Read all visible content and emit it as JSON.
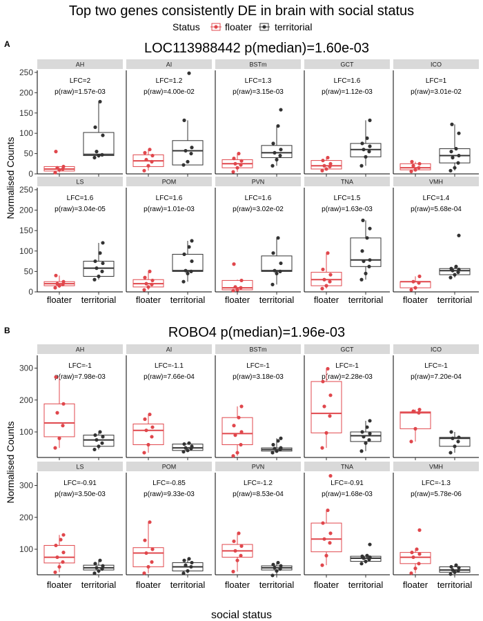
{
  "figure": {
    "title": "Top two genes consistently DE in brain with social status",
    "legend": {
      "title": "Status",
      "items": [
        {
          "label": "floater",
          "color": "#e0474c"
        },
        {
          "label": "territorial",
          "color": "#333333"
        }
      ],
      "placement": "top-center"
    },
    "xlabel": "social status",
    "colors": {
      "floater": "#e0474c",
      "territorial": "#333333",
      "strip": "#d9d9d9"
    }
  },
  "chart_data": [
    {
      "panel_tag": "A",
      "type": "box",
      "title": "LOC113988442 p(median)=1.60e-03",
      "ylabel": "Normalised Counts",
      "ylim": [
        0,
        255
      ],
      "yticks": [
        0,
        50,
        100,
        150,
        200,
        250
      ],
      "categories": [
        "floater",
        "territorial"
      ],
      "regions": [
        {
          "name": "AH",
          "lfc": "LFC=2",
          "p": "p(raw)=1.57e-03",
          "floater": {
            "q1": 7,
            "median": 12,
            "q3": 18,
            "min": 3,
            "max": 18,
            "points": [
              3,
              10,
              12,
              15,
              18,
              55
            ]
          },
          "territorial": {
            "q1": 45,
            "median": 48,
            "q3": 102,
            "min": 40,
            "max": 178,
            "points": [
              40,
              45,
              47,
              55,
              95,
              115,
              178
            ]
          }
        },
        {
          "name": "AI",
          "lfc": "LFC=1.2",
          "p": "p(raw)=4.00e-02",
          "floater": {
            "q1": 18,
            "median": 32,
            "q3": 47,
            "min": 8,
            "max": 60,
            "points": [
              8,
              20,
              30,
              35,
              45,
              52,
              60
            ]
          },
          "territorial": {
            "q1": 22,
            "median": 57,
            "q3": 82,
            "min": 22,
            "max": 132,
            "points": [
              22,
              30,
              50,
              57,
              65,
              132,
              248
            ]
          }
        },
        {
          "name": "BSTm",
          "lfc": "LFC=1.3",
          "p": "p(raw)=3.15e-03",
          "floater": {
            "q1": 15,
            "median": 25,
            "q3": 35,
            "min": 5,
            "max": 50,
            "points": [
              5,
              15,
              22,
              25,
              32,
              38,
              50
            ]
          },
          "territorial": {
            "q1": 40,
            "median": 52,
            "q3": 70,
            "min": 20,
            "max": 118,
            "points": [
              20,
              35,
              45,
              52,
              60,
              75,
              118,
              158
            ]
          }
        },
        {
          "name": "GCT",
          "lfc": "LFC=1.6",
          "p": "p(raw)=1.12e-03",
          "floater": {
            "q1": 12,
            "median": 20,
            "q3": 33,
            "min": 8,
            "max": 40,
            "points": [
              8,
              12,
              18,
              20,
              25,
              33,
              40
            ]
          },
          "territorial": {
            "q1": 42,
            "median": 60,
            "q3": 75,
            "min": 20,
            "max": 132,
            "points": [
              20,
              42,
              55,
              60,
              68,
              75,
              88,
              132
            ]
          }
        },
        {
          "name": "ICO",
          "lfc": "LFC=1",
          "p": "p(raw)=3.01e-02",
          "floater": {
            "q1": 10,
            "median": 15,
            "q3": 25,
            "min": 6,
            "max": 30,
            "points": [
              6,
              10,
              15,
              20,
              25,
              30
            ]
          },
          "territorial": {
            "q1": 27,
            "median": 45,
            "q3": 62,
            "min": 8,
            "max": 122,
            "points": [
              8,
              15,
              27,
              40,
              45,
              55,
              62,
              100,
              122
            ]
          }
        },
        {
          "name": "LS",
          "lfc": "LFC=1.6",
          "p": "p(raw)=3.04e-05",
          "floater": {
            "q1": 15,
            "median": 20,
            "q3": 25,
            "min": 10,
            "max": 40,
            "points": [
              10,
              15,
              18,
              20,
              25,
              40
            ]
          },
          "territorial": {
            "q1": 38,
            "median": 58,
            "q3": 75,
            "min": 30,
            "max": 120,
            "points": [
              30,
              38,
              50,
              58,
              70,
              75,
              95,
              120
            ]
          }
        },
        {
          "name": "POM",
          "lfc": "LFC=1.6",
          "p": "p(raw)=1.01e-03",
          "floater": {
            "q1": 12,
            "median": 20,
            "q3": 30,
            "min": 5,
            "max": 50,
            "points": [
              5,
              12,
              18,
              20,
              28,
              35,
              50
            ]
          },
          "territorial": {
            "q1": 50,
            "median": 52,
            "q3": 92,
            "min": 25,
            "max": 125,
            "points": [
              25,
              45,
              50,
              52,
              75,
              92,
              110,
              125
            ]
          }
        },
        {
          "name": "PVN",
          "lfc": "LFC=1.6",
          "p": "p(raw)=3.02e-02",
          "floater": {
            "q1": 5,
            "median": 10,
            "q3": 28,
            "min": 3,
            "max": 30,
            "points": [
              3,
              5,
              10,
              12,
              28,
              68
            ]
          },
          "territorial": {
            "q1": 50,
            "median": 52,
            "q3": 88,
            "min": 18,
            "max": 132,
            "points": [
              18,
              45,
              50,
              52,
              70,
              95,
              132
            ]
          }
        },
        {
          "name": "TNA",
          "lfc": "LFC=1.5",
          "p": "p(raw)=1.63e-03",
          "floater": {
            "q1": 15,
            "median": 30,
            "q3": 48,
            "min": 8,
            "max": 95,
            "points": [
              8,
              15,
              25,
              30,
              42,
              55,
              95
            ]
          },
          "territorial": {
            "q1": 62,
            "median": 78,
            "q3": 132,
            "min": 30,
            "max": 175,
            "points": [
              30,
              45,
              62,
              75,
              78,
              100,
              132,
              155,
              175
            ]
          }
        },
        {
          "name": "VMH",
          "lfc": "LFC=1.4",
          "p": "p(raw)=5.68e-04",
          "floater": {
            "q1": 10,
            "median": 25,
            "q3": 25,
            "min": 5,
            "max": 38,
            "points": [
              5,
              10,
              22,
              25,
              38
            ]
          },
          "territorial": {
            "q1": 42,
            "median": 52,
            "q3": 57,
            "min": 35,
            "max": 62,
            "points": [
              35,
              42,
              48,
              52,
              55,
              57,
              62,
              138
            ]
          }
        }
      ]
    },
    {
      "panel_tag": "B",
      "type": "box",
      "title": "ROBO4 p(median)=1.96e-03",
      "ylabel": "Normalised Counts",
      "ylim": [
        20,
        340
      ],
      "yticks": [
        100,
        200,
        300
      ],
      "categories": [
        "floater",
        "territorial"
      ],
      "regions": [
        {
          "name": "AH",
          "lfc": "LFC=-1",
          "p": "p(raw)=7.98e-03",
          "floater": {
            "q1": 85,
            "median": 128,
            "q3": 188,
            "min": 50,
            "max": 272,
            "points": [
              50,
              80,
              120,
              160,
              188,
              272
            ]
          },
          "territorial": {
            "q1": 55,
            "median": 75,
            "q3": 90,
            "min": 45,
            "max": 100,
            "points": [
              45,
              55,
              65,
              75,
              85,
              90,
              100
            ]
          }
        },
        {
          "name": "AI",
          "lfc": "LFC=-1.1",
          "p": "p(raw)=7.66e-04",
          "floater": {
            "q1": 60,
            "median": 105,
            "q3": 125,
            "min": 35,
            "max": 155,
            "points": [
              35,
              60,
              85,
              105,
              115,
              140,
              155
            ]
          },
          "territorial": {
            "q1": 42,
            "median": 50,
            "q3": 62,
            "min": 38,
            "max": 65,
            "points": [
              38,
              42,
              48,
              50,
              55,
              62,
              65
            ]
          }
        },
        {
          "name": "BSTm",
          "lfc": "LFC=-1",
          "p": "p(raw)=3.18e-03",
          "floater": {
            "q1": 60,
            "median": 95,
            "q3": 145,
            "min": 25,
            "max": 180,
            "points": [
              25,
              35,
              60,
              90,
              100,
              120,
              145,
              180
            ]
          },
          "territorial": {
            "q1": 40,
            "median": 45,
            "q3": 50,
            "min": 35,
            "max": 80,
            "points": [
              35,
              40,
              45,
              48,
              50,
              60,
              72,
              80
            ]
          }
        },
        {
          "name": "GCT",
          "lfc": "LFC=-1",
          "p": "p(raw)=2.28e-03",
          "floater": {
            "q1": 97,
            "median": 158,
            "q3": 258,
            "min": 50,
            "max": 298,
            "points": [
              50,
              97,
              150,
              180,
              215,
              258,
              298
            ]
          },
          "territorial": {
            "q1": 70,
            "median": 88,
            "q3": 100,
            "min": 40,
            "max": 135,
            "points": [
              40,
              65,
              75,
              85,
              95,
              100,
              115,
              135
            ]
          }
        },
        {
          "name": "ICO",
          "lfc": "LFC=-1",
          "p": "p(raw)=7.20e-04",
          "floater": {
            "q1": 110,
            "median": 160,
            "q3": 163,
            "min": 70,
            "max": 170,
            "points": [
              70,
              110,
              160,
              165,
              170
            ]
          },
          "territorial": {
            "q1": 55,
            "median": 80,
            "q3": 83,
            "min": 35,
            "max": 100,
            "points": [
              35,
              55,
              70,
              80,
              83,
              100
            ]
          }
        },
        {
          "name": "LS",
          "lfc": "LFC=-0.91",
          "p": "p(raw)=3.50e-03",
          "floater": {
            "q1": 57,
            "median": 75,
            "q3": 112,
            "min": 28,
            "max": 145,
            "points": [
              28,
              45,
              60,
              75,
              90,
              112,
              130,
              145
            ]
          },
          "territorial": {
            "q1": 35,
            "median": 42,
            "q3": 50,
            "min": 25,
            "max": 65,
            "points": [
              25,
              32,
              38,
              42,
              48,
              55,
              65
            ]
          }
        },
        {
          "name": "POM",
          "lfc": "LFC=-0.85",
          "p": "p(raw)=9.33e-03",
          "floater": {
            "q1": 45,
            "median": 88,
            "q3": 105,
            "min": 25,
            "max": 185,
            "points": [
              25,
              45,
              60,
              88,
              100,
              128,
              185
            ]
          },
          "territorial": {
            "q1": 32,
            "median": 45,
            "q3": 58,
            "min": 25,
            "max": 70,
            "points": [
              25,
              32,
              45,
              50,
              58,
              65,
              70
            ]
          }
        },
        {
          "name": "PVN",
          "lfc": "LFC=-1.2",
          "p": "p(raw)=8.53e-04",
          "floater": {
            "q1": 75,
            "median": 95,
            "q3": 115,
            "min": 30,
            "max": 150,
            "points": [
              30,
              65,
              80,
              95,
              110,
              125,
              150
            ]
          },
          "territorial": {
            "q1": 35,
            "median": 42,
            "q3": 48,
            "min": 18,
            "max": 58,
            "points": [
              18,
              32,
              38,
              42,
              48,
              52,
              58
            ]
          }
        },
        {
          "name": "TNA",
          "lfc": "LFC=-0.91",
          "p": "p(raw)=1.68e-03",
          "floater": {
            "q1": 92,
            "median": 132,
            "q3": 182,
            "min": 50,
            "max": 222,
            "points": [
              50,
              80,
              120,
              132,
              150,
              182,
              222,
              330
            ]
          },
          "territorial": {
            "q1": 62,
            "median": 72,
            "q3": 78,
            "min": 55,
            "max": 80,
            "points": [
              55,
              62,
              68,
              72,
              75,
              78,
              80,
              115
            ]
          }
        },
        {
          "name": "VMH",
          "lfc": "LFC=-1.3",
          "p": "p(raw)=5.78e-06",
          "floater": {
            "q1": 55,
            "median": 75,
            "q3": 90,
            "min": 25,
            "max": 100,
            "points": [
              25,
              40,
              55,
              75,
              85,
              90,
              100,
              160
            ]
          },
          "territorial": {
            "q1": 28,
            "median": 35,
            "q3": 45,
            "min": 22,
            "max": 50,
            "points": [
              22,
              28,
              32,
              35,
              42,
              45,
              50
            ]
          }
        }
      ]
    }
  ]
}
